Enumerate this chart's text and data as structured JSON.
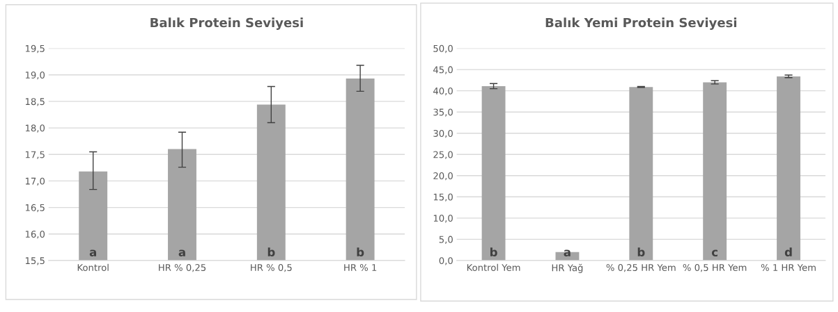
{
  "chart_data": [
    {
      "type": "bar",
      "title": "Balık Protein Seviyesi",
      "categories": [
        "Kontrol",
        "HR % 0,25",
        "HR % 0,5",
        "HR % 1"
      ],
      "values": [
        17.18,
        17.6,
        18.44,
        18.93
      ],
      "color": "#a5a5a5",
      "errors": [
        [
          16.84,
          17.55
        ],
        [
          17.26,
          17.92
        ],
        [
          18.1,
          18.78
        ],
        [
          18.69,
          19.18
        ]
      ],
      "ylim": [
        15.5,
        19.5
      ],
      "yticks": [
        {
          "value": 15.5,
          "label": "15,5"
        },
        {
          "value": 16.0,
          "label": "16,0"
        },
        {
          "value": 16.5,
          "label": "16,5"
        },
        {
          "value": 17.0,
          "label": "17,0"
        },
        {
          "value": 17.5,
          "label": "17,5"
        },
        {
          "value": 18.0,
          "label": "18,0"
        },
        {
          "value": 18.5,
          "label": "18,5"
        },
        {
          "value": 19.0,
          "label": "19,0"
        },
        {
          "value": 19.5,
          "label": "19,5"
        }
      ],
      "grid": "y",
      "legend": false,
      "annotations": [
        "a",
        "a",
        "b",
        "b"
      ]
    },
    {
      "type": "bar",
      "title": "Balık Yemi Protein Seviyesi",
      "categories": [
        "Kontrol Yem",
        "HR Yağ",
        "% 0,25 HR Yem",
        "% 0,5 HR Yem",
        "% 1 HR Yem"
      ],
      "values": [
        41.1,
        2.0,
        40.9,
        42.0,
        43.4
      ],
      "color": "#a5a5a5",
      "errors": [
        0.6,
        null,
        0.1,
        0.4,
        0.3
      ],
      "ylim": [
        0,
        50
      ],
      "yticks": [
        {
          "value": 0,
          "label": "0,0"
        },
        {
          "value": 5,
          "label": "5,0"
        },
        {
          "value": 10,
          "label": "10,0"
        },
        {
          "value": 15,
          "label": "15,0"
        },
        {
          "value": 20,
          "label": "20,0"
        },
        {
          "value": 25,
          "label": "25,0"
        },
        {
          "value": 30,
          "label": "30,0"
        },
        {
          "value": 35,
          "label": "35,0"
        },
        {
          "value": 40,
          "label": "40,0"
        },
        {
          "value": 45,
          "label": "45,0"
        },
        {
          "value": 50,
          "label": "50,0"
        }
      ],
      "grid": "y",
      "legend": false,
      "annotations": [
        "b",
        "a",
        "b",
        "c",
        "d"
      ]
    }
  ]
}
